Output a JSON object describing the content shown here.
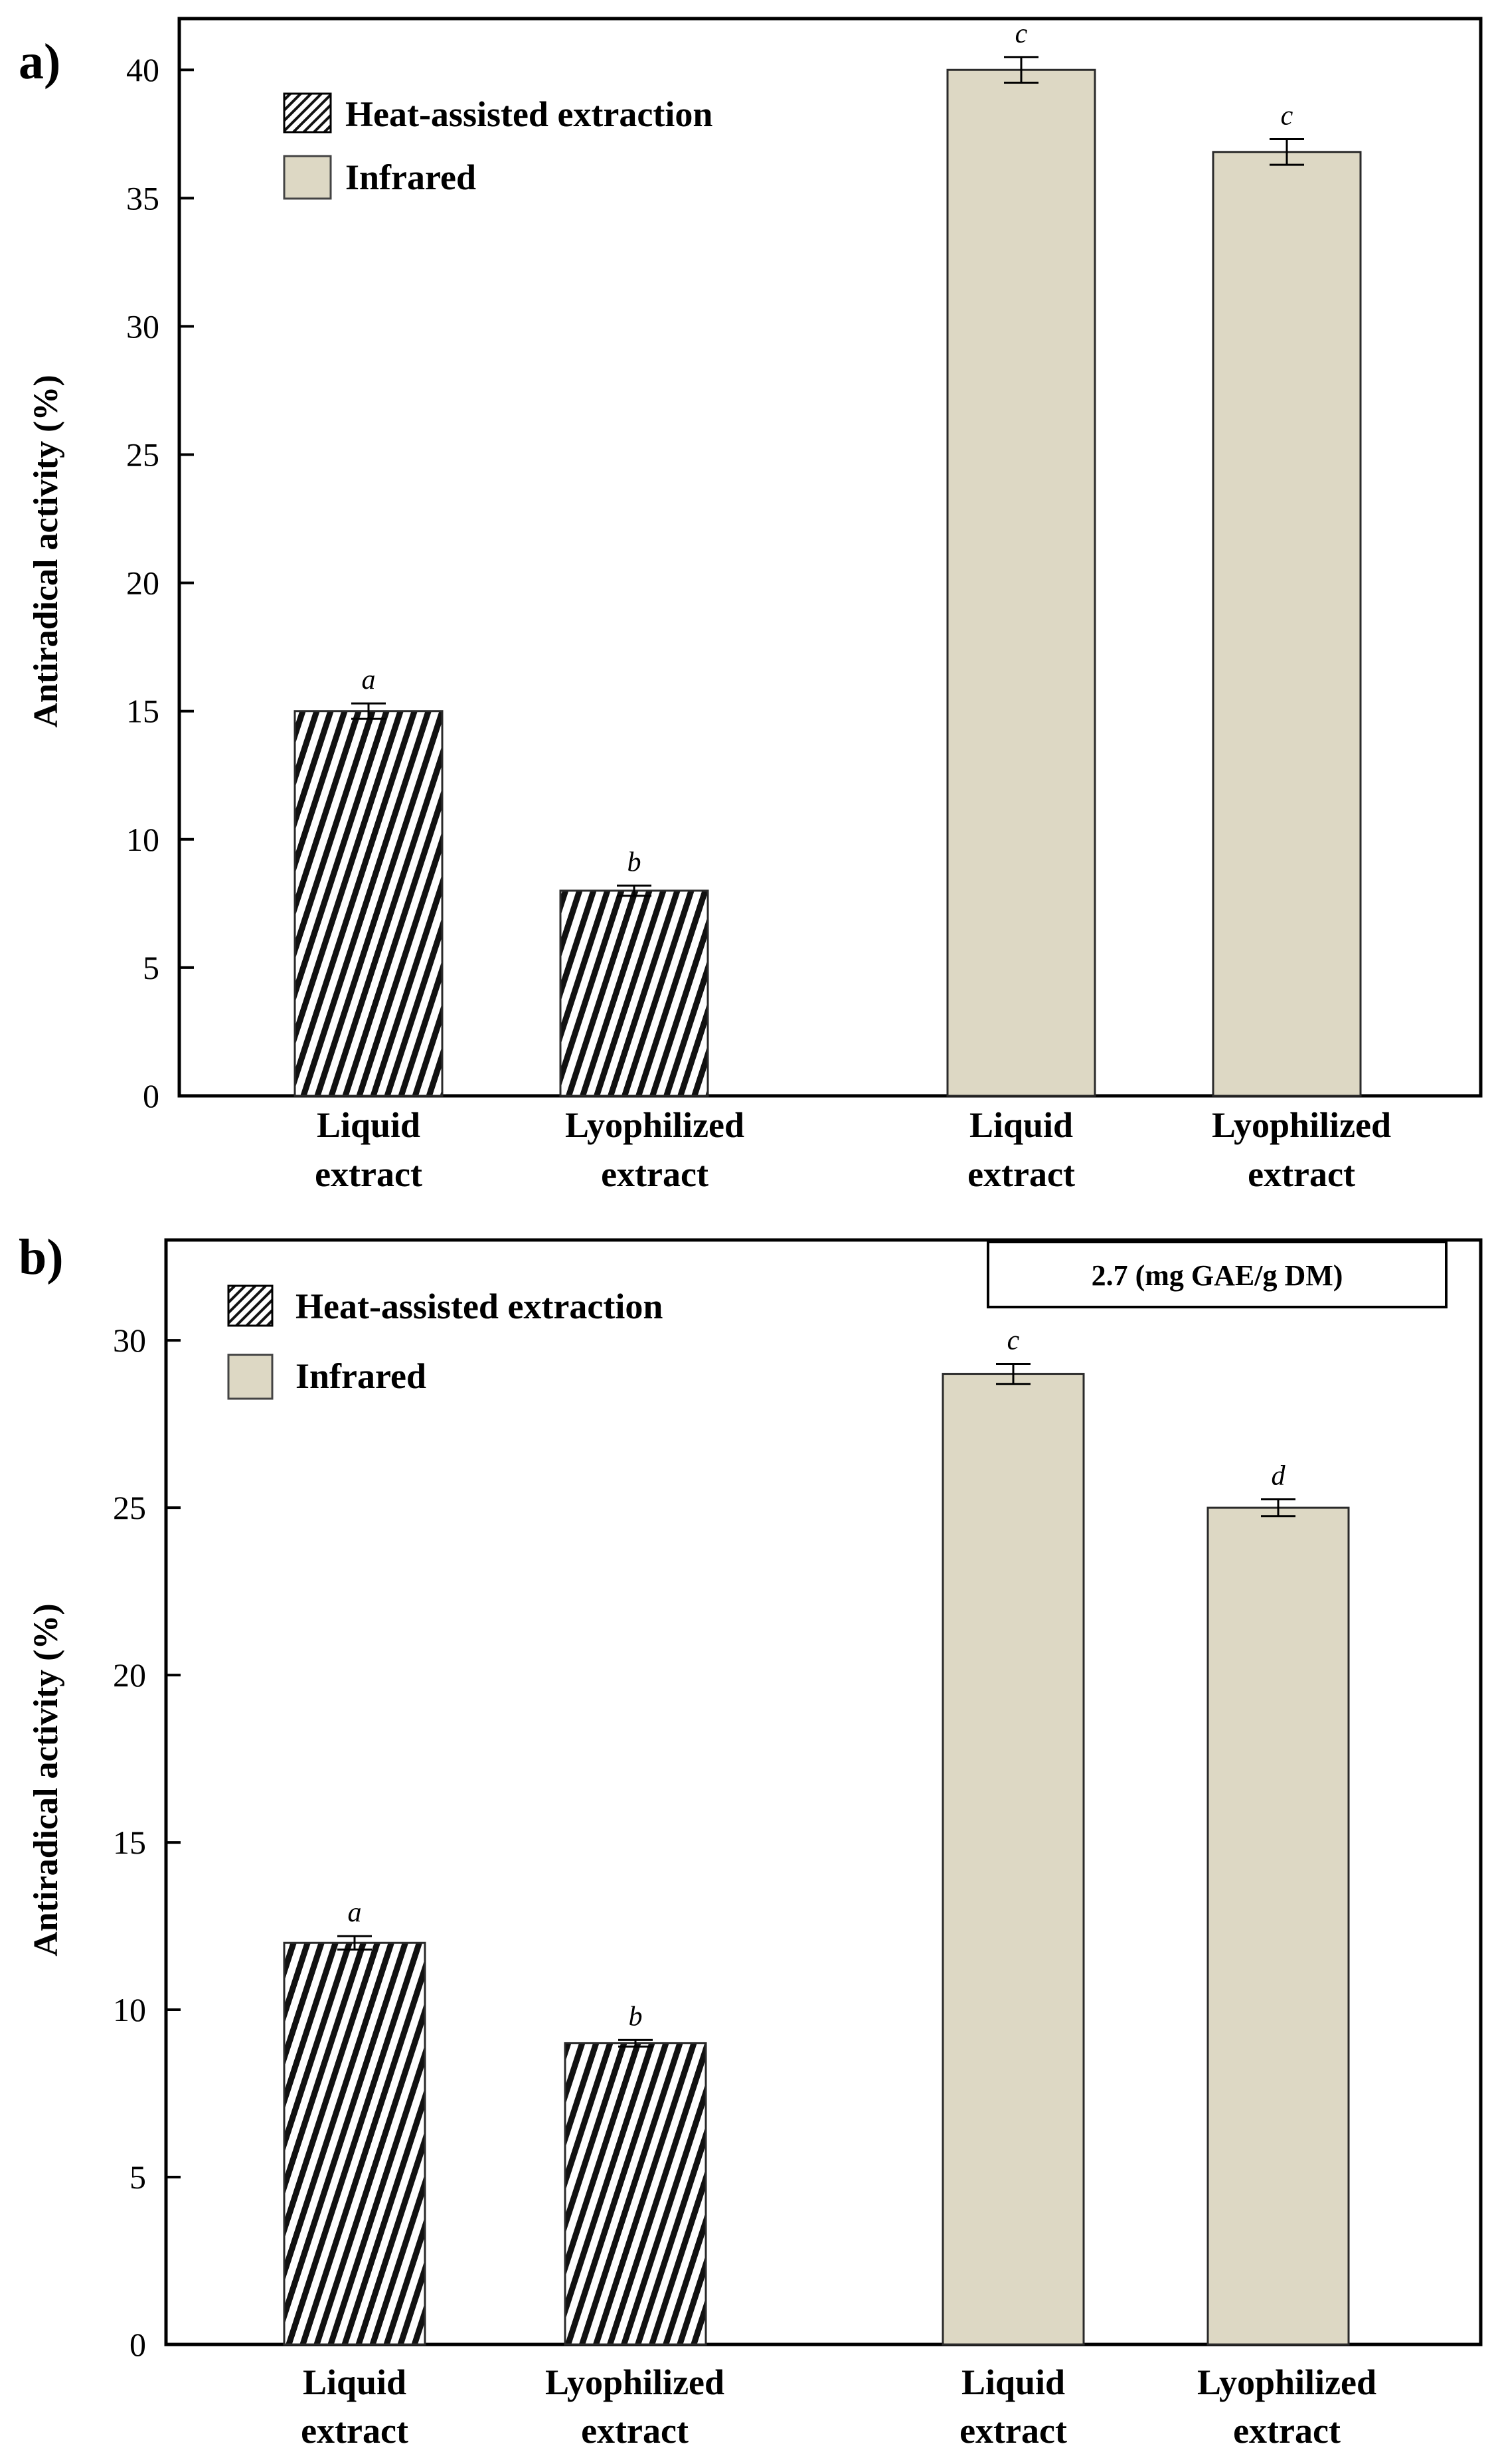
{
  "colors": {
    "heat_hatch": "#111111",
    "infrared_fill": "#ddd8c4",
    "axis": "#000000",
    "background": "#ffffff"
  },
  "chart_data": [
    {
      "panel_label": "a)",
      "type": "bar",
      "title": "",
      "xlabel": "",
      "ylabel": "Antiradical activity (%)",
      "ylim": [
        0,
        42
      ],
      "yticks": [
        "0",
        "5",
        "10",
        "15",
        "20",
        "25",
        "30",
        "35",
        "40"
      ],
      "legend": {
        "position": "top-left",
        "entries": [
          {
            "name": "Heat-assisted extraction",
            "style": "hatched"
          },
          {
            "name": "Infrared",
            "style": "solid"
          }
        ]
      },
      "note": "",
      "bars": [
        {
          "category_line1": "Liquid",
          "category_line2": "extract",
          "series": "Heat-assisted extraction",
          "value": 15.0,
          "error": 0.3,
          "letter": "a"
        },
        {
          "category_line1": "Lyophilized",
          "category_line2": "extract",
          "series": "Heat-assisted extraction",
          "value": 8.0,
          "error": 0.2,
          "letter": "b"
        },
        {
          "category_line1": "Liquid",
          "category_line2": "extract",
          "series": "Infrared",
          "value": 40.0,
          "error": 0.5,
          "letter": "c"
        },
        {
          "category_line1": "Lyophilized",
          "category_line2": "extract",
          "series": "Infrared",
          "value": 36.8,
          "error": 0.5,
          "letter": "c"
        }
      ]
    },
    {
      "panel_label": "b)",
      "type": "bar",
      "title": "",
      "xlabel": "",
      "ylabel": "Antiradical activity (%)",
      "ylim": [
        0,
        33
      ],
      "yticks": [
        "0",
        "5",
        "10",
        "15",
        "20",
        "25",
        "30"
      ],
      "legend": {
        "position": "top-left",
        "entries": [
          {
            "name": "Heat-assisted extraction",
            "style": "hatched"
          },
          {
            "name": "Infrared",
            "style": "solid"
          }
        ]
      },
      "note": "2.7 (mg GAE/g DM)",
      "bars": [
        {
          "category_line1": "Liquid",
          "category_line2": "extract",
          "series": "Heat-assisted extraction",
          "value": 12.0,
          "error": 0.2,
          "letter": "a"
        },
        {
          "category_line1": "Lyophilized",
          "category_line2": "extract",
          "series": "Heat-assisted extraction",
          "value": 9.0,
          "error": 0.1,
          "letter": "b"
        },
        {
          "category_line1": "Liquid",
          "category_line2": "extract",
          "series": "Infrared",
          "value": 29.0,
          "error": 0.3,
          "letter": "c"
        },
        {
          "category_line1": "Lyophilized",
          "category_line2": "extract",
          "series": "Infrared",
          "value": 25.0,
          "error": 0.25,
          "letter": "d"
        }
      ]
    }
  ]
}
